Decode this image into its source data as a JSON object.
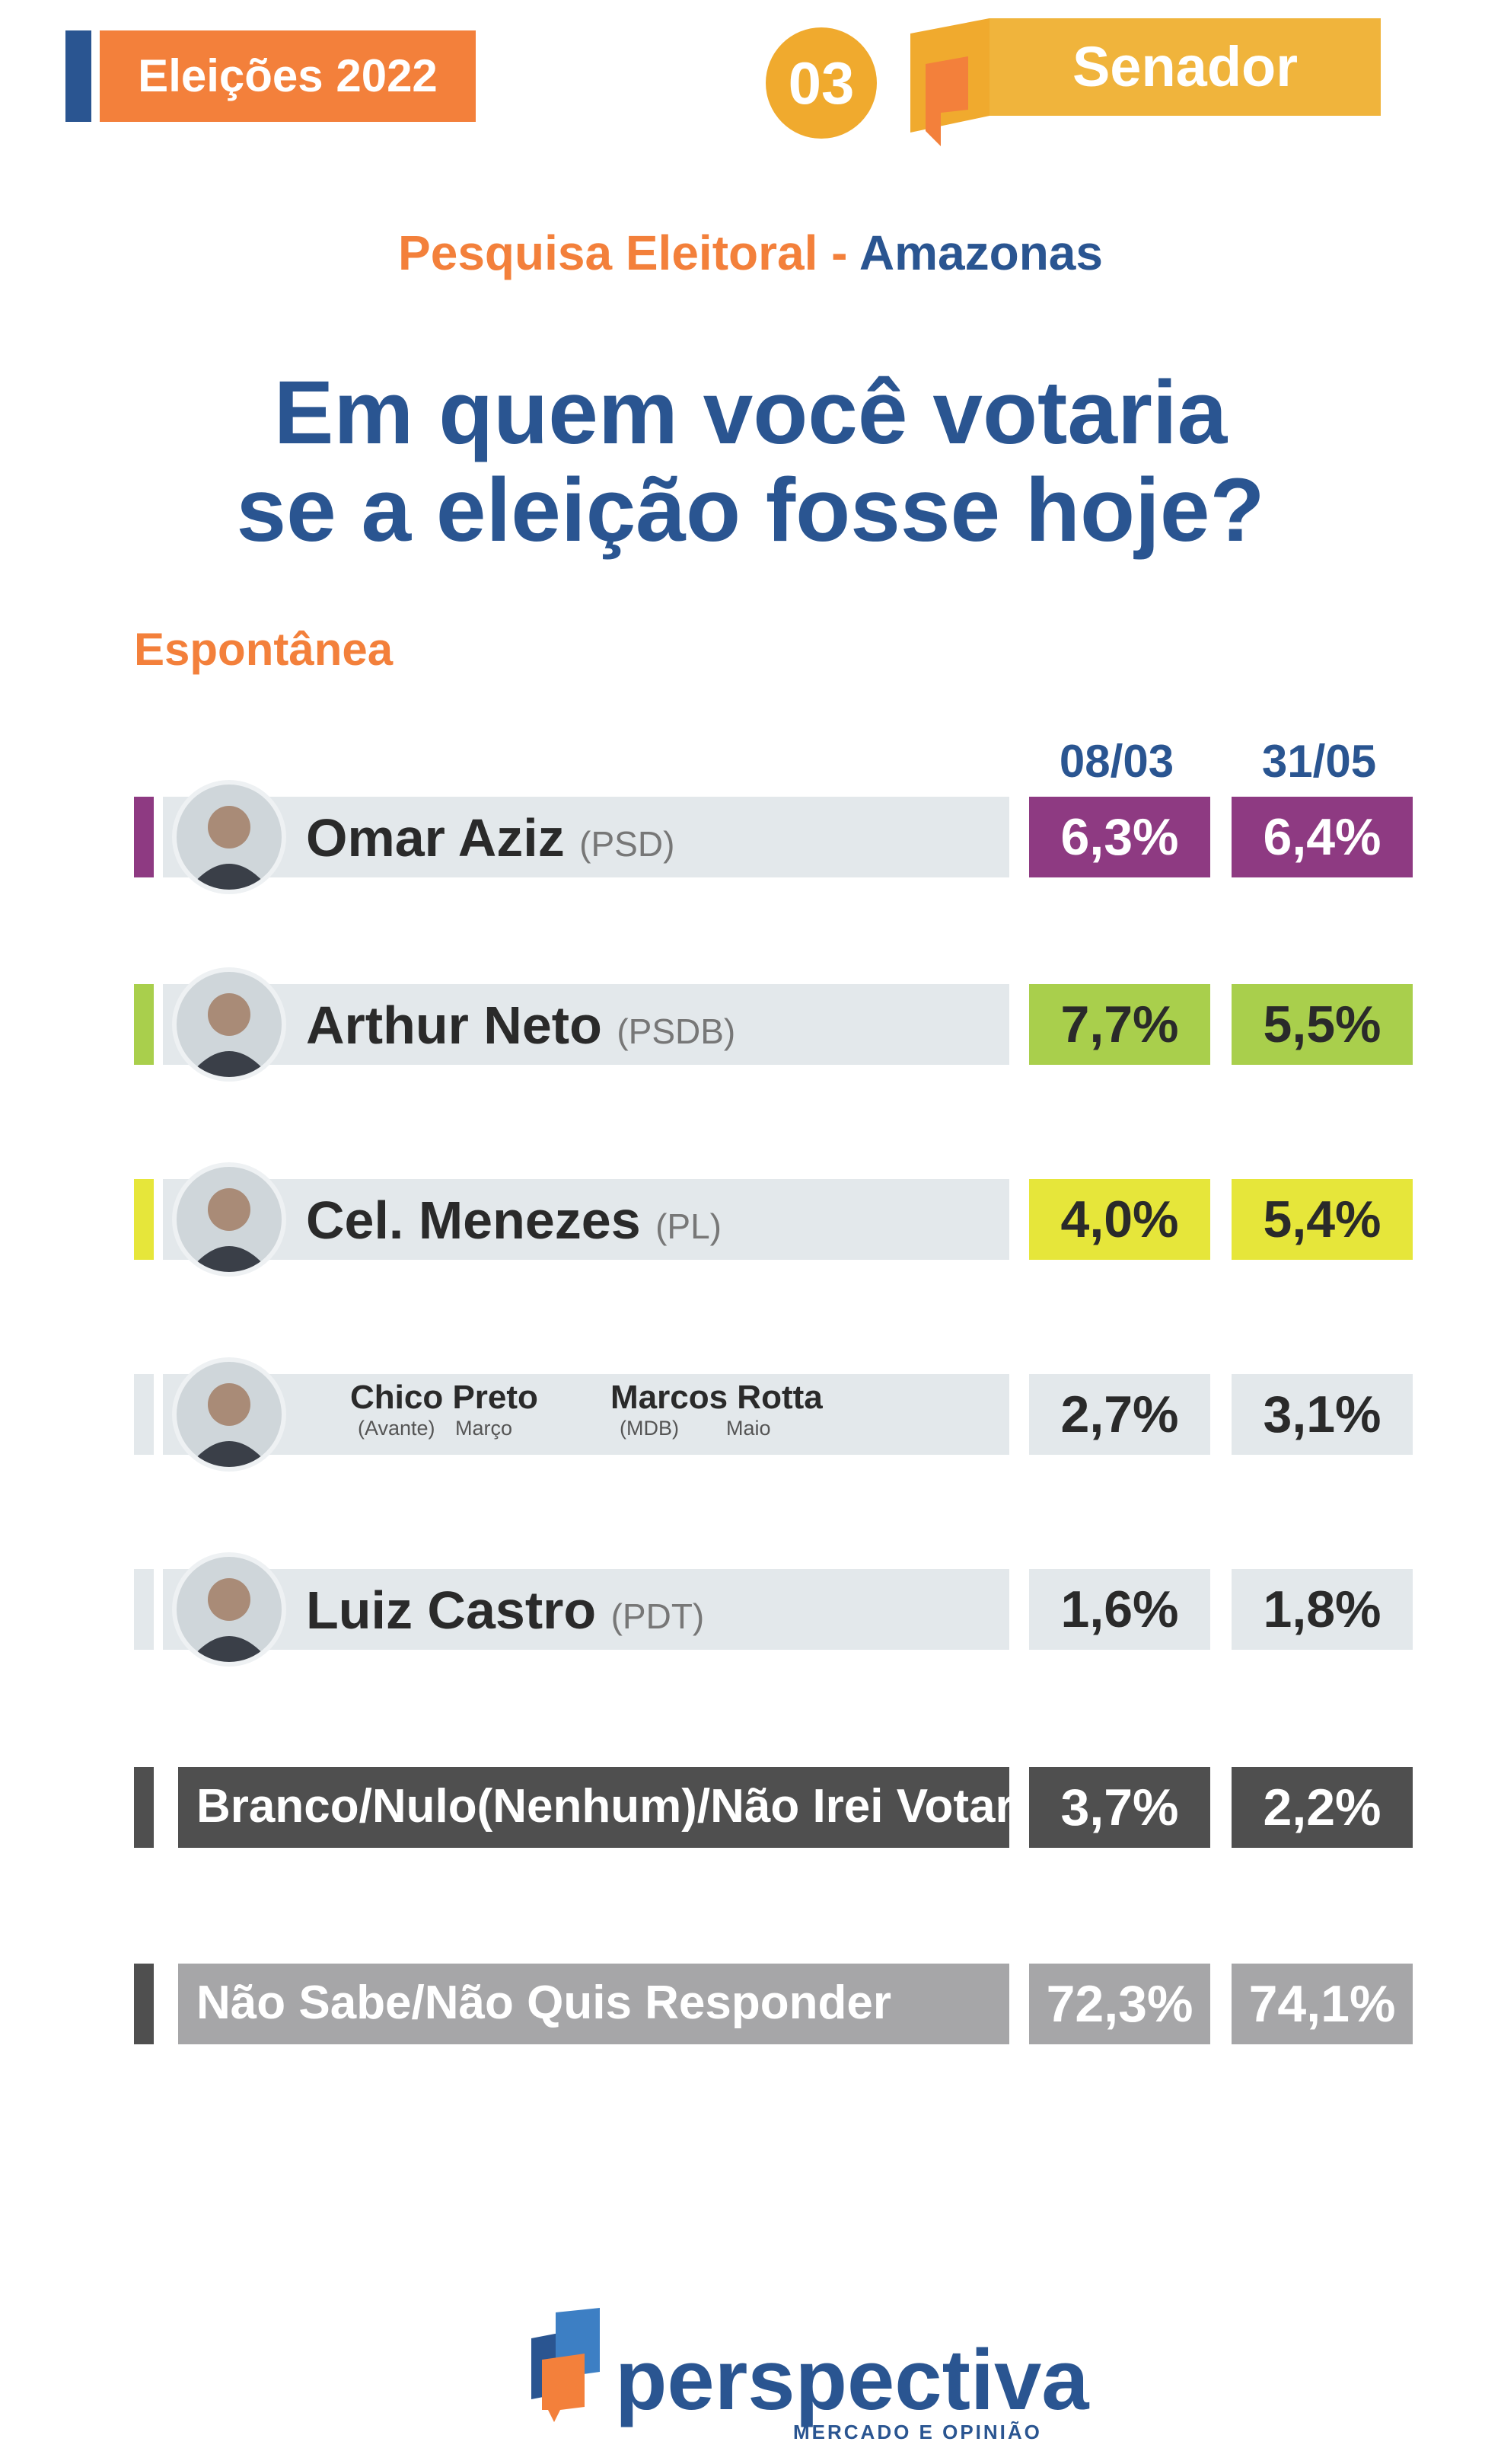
{
  "header": {
    "tag": "Eleições 2022",
    "number": "03",
    "office": "Senador"
  },
  "subtitle": {
    "part1": "Pesquisa Eleitoral - ",
    "part2": "Amazonas"
  },
  "question": {
    "line1": "Em quem você votaria",
    "line2": "se a eleição fosse hoje?"
  },
  "section_label": "Espontânea",
  "logo": {
    "name": "perspectiva",
    "tagline": "MERCADO E OPINIÃO"
  },
  "colors": {
    "orange": "#f3803b",
    "navy": "#2a5591",
    "gold": "#f0b43c",
    "purple": "#8e3a82",
    "green": "#a9cf4c",
    "yellow": "#e6e63a",
    "light": "#e3e8eb",
    "dark": "#4f4f4f",
    "grey": "#a6a6a8"
  },
  "chart_data": {
    "type": "table",
    "columns": [
      "08/03",
      "31/05"
    ],
    "rows": [
      {
        "name": "Omar Aziz",
        "party": "(PSD)",
        "values": [
          "6,3%",
          "6,4%"
        ],
        "nums": [
          6.3,
          6.4
        ],
        "color": "#8e3a82",
        "accent": "#8e3a82",
        "bg": "#e3e8eb",
        "text_color": "#ffffff"
      },
      {
        "name": "Arthur Neto",
        "party": "(PSDB)",
        "values": [
          "7,7%",
          "5,5%"
        ],
        "nums": [
          7.7,
          5.5
        ],
        "color": "#a9cf4c",
        "accent": "#a9cf4c",
        "bg": "#e3e8eb",
        "text_color": "#2a2a2a"
      },
      {
        "name": "Cel. Menezes",
        "party": "(PL)",
        "values": [
          "4,0%",
          "5,4%"
        ],
        "nums": [
          4.0,
          5.4
        ],
        "color": "#e6e63a",
        "accent": "#e6e63a",
        "bg": "#e3e8eb",
        "text_color": "#2a2a2a"
      },
      {
        "name1": "Chico Preto",
        "party1": "(Avante)",
        "month1": "Março",
        "name2": "Marcos Rotta",
        "party2": "(MDB)",
        "month2": "Maio",
        "values": [
          "2,7%",
          "3,1%"
        ],
        "nums": [
          2.7,
          3.1
        ],
        "color": "#e3e8eb",
        "accent": "#e3e8eb",
        "bg": "#e3e8eb",
        "text_color": "#2a2a2a"
      },
      {
        "name": "Luiz Castro",
        "party": "(PDT)",
        "values": [
          "1,6%",
          "1,8%"
        ],
        "nums": [
          1.6,
          1.8
        ],
        "color": "#e3e8eb",
        "accent": "#e3e8eb",
        "bg": "#e3e8eb",
        "text_color": "#2a2a2a"
      },
      {
        "name": "Branco/Nulo(Nenhum)/Não Irei Votar",
        "values": [
          "3,7%",
          "2,2%"
        ],
        "nums": [
          3.7,
          2.2
        ],
        "color": "#4f4f4f",
        "accent": "#4f4f4f",
        "bg": "#4f4f4f",
        "text_color": "#ffffff"
      },
      {
        "name": "Não Sabe/Não Quis Responder",
        "values": [
          "72,3%",
          "74,1%"
        ],
        "nums": [
          72.3,
          74.1
        ],
        "color": "#a6a6a8",
        "accent": "#4f4f4f",
        "bg": "#a6a6a8",
        "text_color": "#ffffff"
      }
    ]
  }
}
